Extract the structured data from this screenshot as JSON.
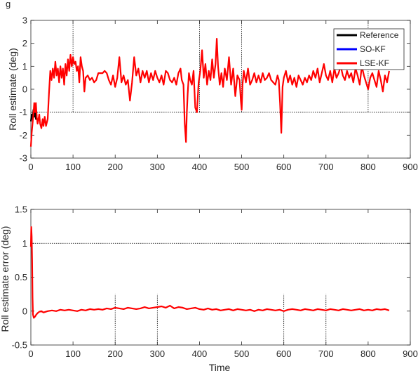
{
  "figure": {
    "clipped_top_label": "g"
  },
  "chart_data": [
    {
      "type": "line",
      "title": "",
      "xlabel": "",
      "ylabel": "Roll estimate (deg)",
      "xlim": [
        0,
        900
      ],
      "ylim": [
        -3,
        3
      ],
      "xticks": [
        0,
        100,
        200,
        300,
        400,
        500,
        600,
        700,
        800,
        900
      ],
      "yticks": [
        -3,
        -2,
        -1,
        0,
        1,
        2,
        3
      ],
      "legend": {
        "placement": "top-right",
        "entries": [
          "Reference",
          "SO-KF",
          "LSE-KF"
        ]
      },
      "grid": false,
      "reference_lines": {
        "horizontal": [
          {
            "y": -1,
            "x_from": 0,
            "x_to": 900
          }
        ],
        "vertical": [
          {
            "x": 100,
            "y_from": -1,
            "y_to": 3
          },
          {
            "x": 400,
            "y_from": -1,
            "y_to": 3
          },
          {
            "x": 500,
            "y_from": -1,
            "y_to": 3
          },
          {
            "x": 800,
            "y_from": -1,
            "y_to": 3
          }
        ]
      },
      "series": [
        {
          "name": "Reference",
          "color": "#000000",
          "x": [
            0,
            2,
            4,
            6,
            8,
            10,
            12,
            14
          ],
          "y": [
            -1.4,
            -1.1,
            -1.3,
            -0.9,
            -1.2,
            -1.0,
            -1.3,
            -1.1
          ]
        },
        {
          "name": "SO-KF",
          "color": "#0000ff",
          "x": [
            0,
            850
          ],
          "y": [
            null,
            null
          ]
        },
        {
          "name": "LSE-KF",
          "color": "#ff0000",
          "x": [
            0,
            2,
            4,
            6,
            8,
            10,
            12,
            14,
            16,
            18,
            20,
            22,
            25,
            28,
            30,
            33,
            36,
            40,
            43,
            46,
            49,
            52,
            55,
            58,
            61,
            64,
            67,
            70,
            73,
            76,
            79,
            82,
            85,
            88,
            91,
            94,
            97,
            100,
            103,
            106,
            109,
            112,
            115,
            118,
            121,
            124,
            127,
            130,
            135,
            140,
            145,
            150,
            155,
            160,
            165,
            170,
            175,
            180,
            185,
            190,
            195,
            200,
            205,
            210,
            215,
            220,
            225,
            230,
            235,
            240,
            245,
            250,
            255,
            260,
            265,
            270,
            275,
            280,
            285,
            290,
            295,
            300,
            305,
            310,
            315,
            320,
            325,
            330,
            335,
            340,
            345,
            350,
            355,
            358,
            362,
            365,
            368,
            370,
            372,
            375,
            378,
            382,
            386,
            390,
            394,
            398,
            402,
            406,
            410,
            414,
            418,
            422,
            426,
            430,
            434,
            438,
            441,
            444,
            448,
            452,
            456,
            460,
            465,
            470,
            475,
            480,
            485,
            490,
            495,
            498,
            500,
            502,
            505,
            510,
            515,
            520,
            525,
            530,
            535,
            540,
            545,
            550,
            555,
            560,
            565,
            570,
            575,
            580,
            585,
            588,
            591,
            594,
            597,
            600,
            605,
            610,
            615,
            620,
            625,
            630,
            635,
            640,
            645,
            650,
            655,
            660,
            665,
            670,
            675,
            680,
            685,
            690,
            695,
            700,
            705,
            710,
            715,
            720,
            725,
            730,
            735,
            740,
            745,
            750,
            755,
            760,
            765,
            770,
            775,
            780,
            785,
            790,
            795,
            800,
            805,
            810,
            815,
            820,
            825,
            830,
            835,
            840,
            845,
            850
          ],
          "y": [
            -2.5,
            -1.9,
            -1.5,
            -1.1,
            -0.6,
            -1.0,
            -0.6,
            -1.2,
            -1.5,
            -1.3,
            -1.1,
            -1.5,
            -1.7,
            -1.3,
            -1.6,
            -1.2,
            -1.6,
            -1.3,
            -0.2,
            0.8,
            0.4,
            0.9,
            0.5,
            1.2,
            0.6,
            0.9,
            0.3,
            1.0,
            0.5,
            0.9,
            0.2,
            1.1,
            0.6,
            1.3,
            0.8,
            1.5,
            1.0,
            1.4,
            1.1,
            1.2,
            0.8,
            1.0,
            0.3,
            1.4,
            1.0,
            0.8,
            -0.1,
            0.5,
            0.6,
            0.4,
            0.5,
            0.3,
            0.4,
            0.7,
            0.7,
            0.7,
            0.8,
            0.7,
            0.4,
            0.2,
            0.6,
            0.1,
            0.5,
            1.4,
            0.3,
            0.6,
            0.2,
            0.4,
            -0.5,
            0.3,
            1.4,
            0.6,
            0.9,
            0.3,
            0.8,
            0.5,
            0.8,
            0.3,
            0.7,
            0.4,
            0.8,
            0.5,
            0.3,
            0.6,
            0.2,
            0.8,
            0.7,
            0.4,
            0.3,
            0.5,
            0.2,
            0.7,
            0.9,
            0.4,
            0.2,
            -1.5,
            -2.3,
            -1.0,
            -0.2,
            0.7,
            0.4,
            0.2,
            0.8,
            -0.8,
            -1.0,
            0.3,
            0.8,
            1.7,
            0.5,
            1.1,
            0.2,
            0.8,
            0.4,
            1.3,
            0.5,
            1.1,
            2.2,
            1.0,
            0.2,
            0.7,
            0.1,
            0.9,
            0.4,
            1.4,
            0.2,
            0.9,
            -0.3,
            0.6,
            0.4,
            -0.5,
            -0.9,
            0.2,
            0.8,
            0.3,
            0.9,
            0.2,
            0.4,
            0.7,
            0.3,
            0.6,
            0.3,
            0.7,
            0.4,
            0.5,
            0.7,
            0.4,
            0.3,
            0.2,
            0.6,
            0.4,
            -0.6,
            -1.9,
            0.1,
            0.5,
            0.8,
            0.3,
            0.6,
            0.2,
            0.5,
            0.1,
            0.6,
            0.4,
            0.2,
            0.5,
            0.3,
            0.6,
            0.4,
            0.8,
            0.5,
            0.9,
            0.3,
            0.7,
            1.1,
            0.6,
            0.4,
            0.8,
            0.3,
            0.9,
            0.5,
            0.7,
            1.0,
            0.6,
            0.4,
            0.8,
            0.5,
            0.7,
            0.3,
            0.9,
            0.6,
            0.2,
            1.0,
            0.6,
            0.3,
            0.0,
            0.5,
            0.7,
            0.4,
            0.1,
            0.8,
            0.4,
            -0.1,
            0.6,
            0.3,
            0.8
          ]
        }
      ]
    },
    {
      "type": "line",
      "title": "",
      "xlabel": "Time",
      "ylabel": "Roll estimate error (deg)",
      "xlim": [
        0,
        900
      ],
      "ylim": [
        -0.5,
        1.5
      ],
      "xticks": [
        0,
        100,
        200,
        300,
        400,
        500,
        600,
        700,
        800,
        900
      ],
      "yticks": [
        -0.5,
        0,
        0.5,
        1,
        1.5
      ],
      "grid": false,
      "reference_lines": {
        "horizontal": [
          {
            "y": 1,
            "x_from": 0,
            "x_to": 900
          }
        ],
        "vertical": [
          {
            "x": 200,
            "y_from": -0.5,
            "y_to": 0.25
          },
          {
            "x": 300,
            "y_from": -0.5,
            "y_to": 0.25
          },
          {
            "x": 600,
            "y_from": -0.5,
            "y_to": 0.25
          },
          {
            "x": 700,
            "y_from": -0.5,
            "y_to": 0.25
          }
        ]
      },
      "series": [
        {
          "name": "LSE-KF",
          "color": "#ff0000",
          "x": [
            0,
            1,
            2,
            3,
            4,
            5,
            7,
            10,
            13,
            16,
            20,
            25,
            30,
            40,
            50,
            60,
            70,
            80,
            90,
            100,
            110,
            120,
            130,
            140,
            150,
            160,
            170,
            180,
            190,
            200,
            210,
            220,
            230,
            240,
            250,
            260,
            270,
            280,
            290,
            300,
            310,
            320,
            330,
            340,
            350,
            360,
            370,
            380,
            390,
            400,
            410,
            420,
            430,
            440,
            450,
            460,
            470,
            480,
            490,
            500,
            510,
            520,
            530,
            540,
            550,
            560,
            570,
            580,
            590,
            600,
            610,
            620,
            630,
            640,
            650,
            660,
            670,
            680,
            690,
            700,
            710,
            720,
            730,
            740,
            750,
            760,
            770,
            780,
            790,
            800,
            810,
            820,
            830,
            840,
            850
          ],
          "y": [
            0.95,
            1.24,
            1.1,
            0.75,
            0.2,
            -0.05,
            -0.1,
            -0.08,
            -0.05,
            -0.03,
            -0.01,
            0.0,
            -0.02,
            0.0,
            0.01,
            0.0,
            0.02,
            0.01,
            0.02,
            0.01,
            0.0,
            0.02,
            0.01,
            0.03,
            0.02,
            0.03,
            0.02,
            0.04,
            0.03,
            0.05,
            0.04,
            0.03,
            0.05,
            0.04,
            0.03,
            0.04,
            0.06,
            0.04,
            0.05,
            0.06,
            0.07,
            0.05,
            0.08,
            0.04,
            0.06,
            0.05,
            0.03,
            0.04,
            0.05,
            0.03,
            0.02,
            0.04,
            0.02,
            0.03,
            0.01,
            0.02,
            0.03,
            0.01,
            0.03,
            0.02,
            0.01,
            0.02,
            0.0,
            0.02,
            0.01,
            0.03,
            0.02,
            0.01,
            0.02,
            0.0,
            0.02,
            0.03,
            0.02,
            0.01,
            0.03,
            0.02,
            0.01,
            0.03,
            0.02,
            0.01,
            0.03,
            0.02,
            0.01,
            0.03,
            0.02,
            0.01,
            0.02,
            0.03,
            0.01,
            0.02,
            0.01,
            0.03,
            0.02,
            0.03,
            0.01
          ]
        }
      ]
    }
  ]
}
